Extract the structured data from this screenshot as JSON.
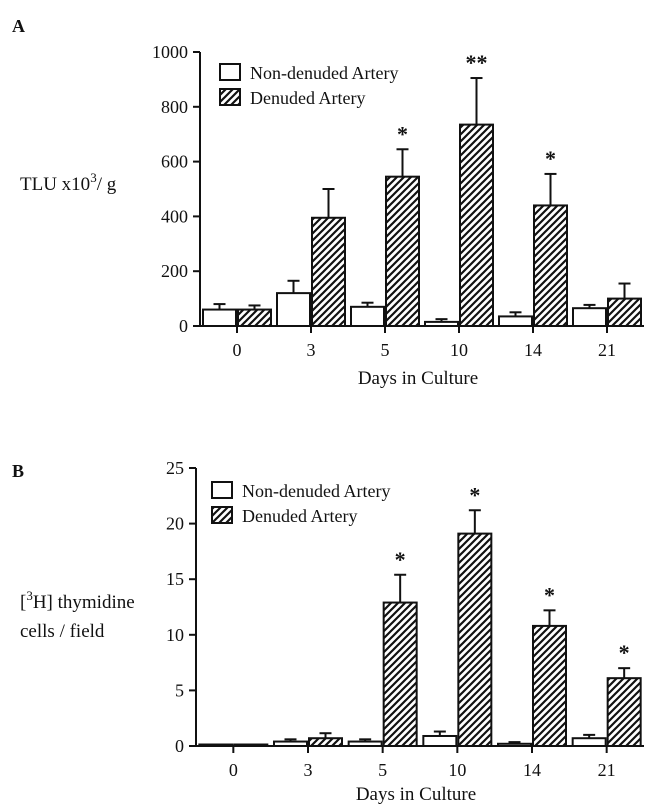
{
  "chart_data": [
    {
      "type": "bar",
      "panel_label": "A",
      "ylabel_main": "TLU x10",
      "ylabel_sup": "3",
      "ylabel_tail": "/ g",
      "xlabel": "Days in Culture",
      "categories": [
        "0",
        "3",
        "5",
        "10",
        "14",
        "21"
      ],
      "ylim": [
        0,
        1000
      ],
      "yticks": [
        0,
        200,
        400,
        600,
        800,
        1000
      ],
      "legend_position": "top-left",
      "series": [
        {
          "name": "Non-denuded Artery",
          "pattern": "open",
          "values": [
            60,
            120,
            70,
            15,
            35,
            65
          ],
          "errors": [
            20,
            45,
            15,
            10,
            15,
            12
          ]
        },
        {
          "name": "Denuded Artery",
          "pattern": "hatched",
          "values": [
            60,
            395,
            545,
            735,
            440,
            100
          ],
          "errors": [
            15,
            105,
            100,
            170,
            115,
            55
          ]
        }
      ],
      "significance": [
        "",
        "",
        "*",
        "**",
        "*",
        ""
      ]
    },
    {
      "type": "bar",
      "panel_label": "B",
      "ylabel_line1_pre": "[",
      "ylabel_line1_sup": "3",
      "ylabel_line1_post": "H] thymidine",
      "ylabel_line2": "cells / field",
      "xlabel": "Days in Culture",
      "categories": [
        "0",
        "3",
        "5",
        "10",
        "14",
        "21"
      ],
      "ylim": [
        0,
        25
      ],
      "yticks": [
        0,
        5,
        10,
        15,
        20,
        25
      ],
      "legend_position": "top-left",
      "series": [
        {
          "name": "Non-denuded Artery",
          "pattern": "open",
          "values": [
            0.05,
            0.4,
            0.4,
            0.9,
            0.2,
            0.7
          ],
          "errors": [
            0.05,
            0.2,
            0.2,
            0.4,
            0.15,
            0.3
          ]
        },
        {
          "name": "Denuded Artery",
          "pattern": "hatched",
          "values": [
            0.05,
            0.7,
            12.9,
            19.1,
            10.8,
            6.1
          ],
          "errors": [
            0.05,
            0.45,
            2.5,
            2.1,
            1.4,
            0.9
          ]
        }
      ],
      "significance": [
        "",
        "",
        "*",
        "*",
        "*",
        "*"
      ]
    }
  ]
}
